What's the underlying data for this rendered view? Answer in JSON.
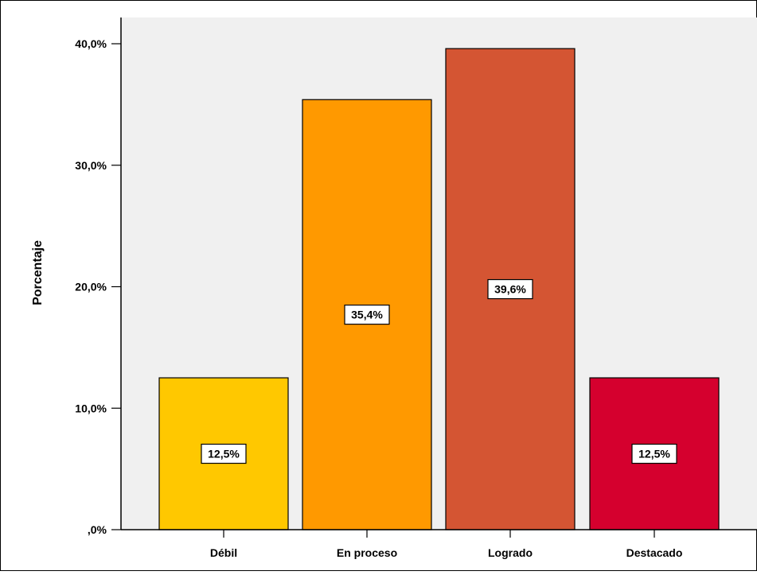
{
  "chart_data": {
    "type": "bar",
    "categories": [
      "Débil",
      "En proceso",
      "Logrado",
      "Destacado"
    ],
    "values": [
      12.5,
      35.4,
      39.6,
      12.5
    ],
    "data_labels": [
      "12,5%",
      "35,4%",
      "39,6%",
      "12,5%"
    ],
    "bar_colors": [
      "#FFC800",
      "#FF9900",
      "#D45533",
      "#D5002E"
    ],
    "ylabel": "Porcentaje",
    "xlabel": "",
    "title": "",
    "ylim": [
      0,
      40
    ],
    "yticks": [
      0,
      10,
      20,
      30,
      40
    ],
    "ytick_labels": [
      ",0%",
      "10,0%",
      "20,0%",
      "30,0%",
      "40,0%"
    ],
    "grid": false,
    "plot_background": "#F0F0F0",
    "legend": "none"
  }
}
